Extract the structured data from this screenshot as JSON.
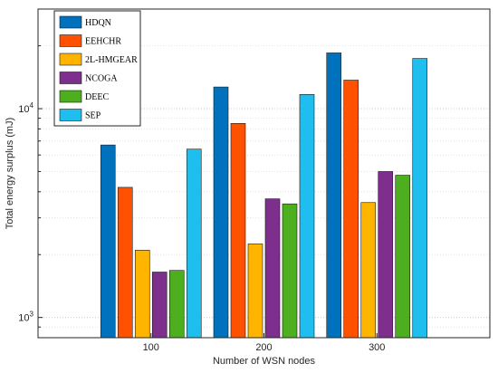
{
  "chart_data": {
    "type": "bar",
    "title": "",
    "xlabel": "Number of WSN nodes",
    "ylabel": "Total energy surplus (mJ)",
    "y_scale": "log",
    "ylim": [
      800,
      30000
    ],
    "y_ticks": [
      {
        "value": 1000,
        "base": "10",
        "exp": "3"
      },
      {
        "value": 10000,
        "base": "10",
        "exp": "4"
      }
    ],
    "categories": [
      "100",
      "200",
      "300"
    ],
    "grid": "horizontal dotted",
    "legend_position": "top-left",
    "series": [
      {
        "name": "HDQN",
        "color": "#0072BD",
        "values": [
          6700,
          12700,
          18500
        ]
      },
      {
        "name": "EEHCHR",
        "color": "#FF5100",
        "values": [
          4200,
          8500,
          13700
        ]
      },
      {
        "name": "2L-HMGEAR",
        "color": "#FFB400",
        "values": [
          2100,
          2250,
          3550
        ]
      },
      {
        "name": "NCOGA",
        "color": "#7E2F8E",
        "values": [
          1650,
          3700,
          5000
        ]
      },
      {
        "name": "DEEC",
        "color": "#4DAE1E",
        "values": [
          1680,
          3500,
          4800
        ]
      },
      {
        "name": "SEP",
        "color": "#1EBEEE",
        "values": [
          6400,
          11700,
          17400
        ]
      }
    ]
  }
}
